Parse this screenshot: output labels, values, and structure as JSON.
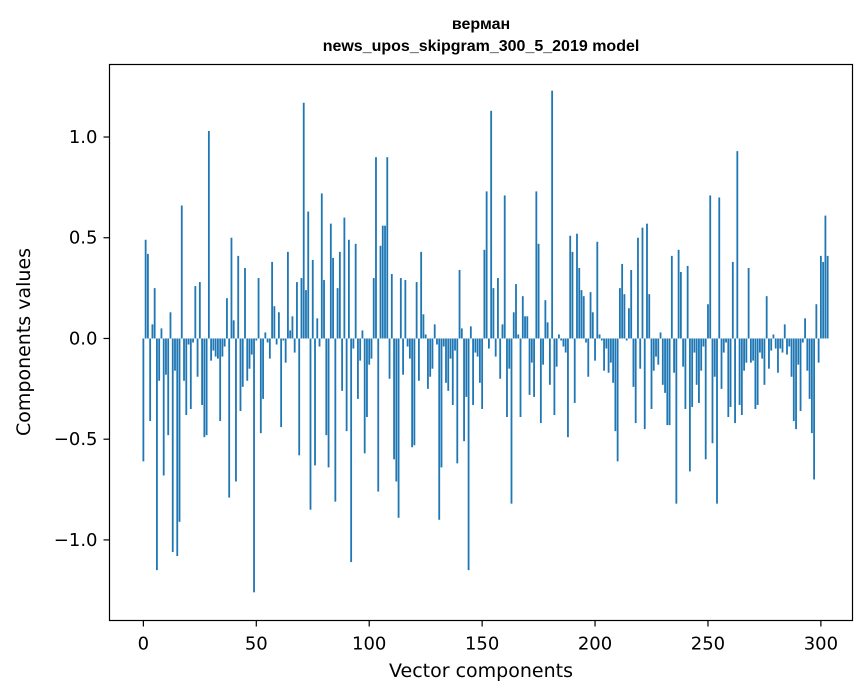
{
  "chart_data": {
    "type": "bar",
    "title": "верман",
    "subtitle": "news_upos_skipgram_300_5_2019 model",
    "xlabel": "Vector components",
    "ylabel": "Components values",
    "xlim": [
      -15,
      314
    ],
    "ylim": [
      -1.4,
      1.36
    ],
    "x_ticks": [
      0,
      50,
      100,
      150,
      200,
      250,
      300
    ],
    "y_ticks": [
      -1.0,
      -0.5,
      0.0,
      0.5,
      1.0
    ],
    "y_tick_labels": [
      "−1.0",
      "−0.5",
      "0.0",
      "0.5",
      "1.0"
    ],
    "grid": false,
    "bar_color": "#1f77b4",
    "values": [
      -0.61,
      0.49,
      0.42,
      -0.41,
      0.07,
      0.25,
      -1.15,
      -0.21,
      0.05,
      -0.68,
      -0.18,
      -0.48,
      0.13,
      -1.06,
      -0.16,
      -1.08,
      -0.91,
      0.66,
      -0.21,
      -0.38,
      -0.03,
      -0.35,
      -0.02,
      0.26,
      -0.19,
      0.28,
      -0.33,
      -0.49,
      -0.48,
      1.03,
      -0.11,
      -0.06,
      -0.09,
      -0.1,
      -0.41,
      -0.09,
      -0.04,
      0.2,
      -0.79,
      0.5,
      0.09,
      -0.71,
      0.41,
      -0.36,
      -0.24,
      0.35,
      -0.21,
      -0.15,
      -0.08,
      -1.26,
      -0.01,
      0.3,
      -0.47,
      -0.3,
      0.03,
      -0.02,
      -0.1,
      0.38,
      0.16,
      -0.03,
      0.13,
      -0.44,
      -0.01,
      -0.12,
      0.43,
      0.04,
      0.11,
      -0.07,
      0.28,
      -0.58,
      0.3,
      1.17,
      0.24,
      0.63,
      -0.85,
      0.39,
      -0.63,
      0.1,
      -0.04,
      0.72,
      0.29,
      -0.48,
      -0.64,
      0.57,
      0.4,
      -0.81,
      0.25,
      0.43,
      -0.26,
      0.6,
      -0.46,
      0.49,
      -1.11,
      -0.05,
      0.47,
      -0.3,
      -0.11,
      0.04,
      -0.57,
      -0.39,
      -0.13,
      -0.1,
      0.3,
      0.9,
      -0.76,
      0.46,
      0.56,
      0.56,
      0.9,
      -0.2,
      0.32,
      -0.6,
      -0.71,
      -0.89,
      0.3,
      -0.18,
      0.29,
      -0.04,
      -0.1,
      -0.54,
      -0.53,
      0.28,
      -0.21,
      0.43,
      0.12,
      0.02,
      -0.25,
      -0.19,
      -0.15,
      0.07,
      -0.03,
      -0.9,
      -0.64,
      -0.04,
      -0.22,
      -0.26,
      -0.1,
      -0.33,
      -0.06,
      -0.62,
      0.34,
      0.05,
      -0.51,
      -0.29,
      -1.15,
      0.06,
      -0.33,
      -0.07,
      -0.09,
      -0.22,
      -0.35,
      0.44,
      0.73,
      -0.05,
      1.13,
      0.25,
      -0.09,
      0.3,
      -0.2,
      0.07,
      0.71,
      -0.39,
      -0.15,
      -0.82,
      0.13,
      0.27,
      0.02,
      -0.39,
      0.21,
      0.11,
      0.11,
      -0.28,
      -0.12,
      -0.29,
      0.73,
      0.47,
      -0.42,
      -0.13,
      0.19,
      0.08,
      -0.23,
      1.23,
      -0.38,
      -0.14,
      0.02,
      -0.01,
      -0.04,
      -0.07,
      -0.49,
      0.51,
      0.43,
      -0.32,
      0.52,
      0.35,
      0.24,
      0.21,
      -0.02,
      -0.19,
      0.23,
      0.13,
      -0.11,
      0.48,
      0.02,
      -0.01,
      -0.16,
      -0.05,
      -0.17,
      -0.12,
      -0.22,
      -0.46,
      -0.61,
      0.25,
      0.37,
      0.22,
      -0.01,
      0.15,
      0.34,
      -0.24,
      -0.42,
      0.5,
      -0.15,
      0.55,
      -0.45,
      0.57,
      0.22,
      -0.35,
      -0.16,
      -0.09,
      -0.13,
      0.03,
      -0.23,
      -0.27,
      -0.43,
      -0.43,
      0.41,
      -0.17,
      -0.82,
      0.44,
      0.33,
      -0.14,
      -0.35,
      0.36,
      -0.66,
      -0.34,
      -0.07,
      -0.23,
      -0.32,
      -0.16,
      -0.04,
      -0.6,
      0.17,
      0.71,
      -0.52,
      -0.19,
      -0.82,
      0.7,
      -0.25,
      -0.07,
      -0.02,
      -0.39,
      -0.34,
      0.38,
      -0.42,
      0.93,
      -0.33,
      -0.38,
      -0.16,
      -0.12,
      0.35,
      -0.12,
      -0.11,
      -0.35,
      -0.33,
      -0.07,
      -0.1,
      -0.23,
      0.21,
      -0.15,
      -0.06,
      0.02,
      -0.05,
      -0.17,
      -0.05,
      -0.07,
      0.07,
      -0.08,
      -0.04,
      -0.19,
      -0.41,
      -0.45,
      -0.13,
      -0.36,
      -0.02,
      0.1,
      -0.16,
      -0.3,
      -0.47,
      -0.7,
      0.17,
      -0.12,
      0.41,
      0.38,
      0.61,
      0.41
    ]
  }
}
